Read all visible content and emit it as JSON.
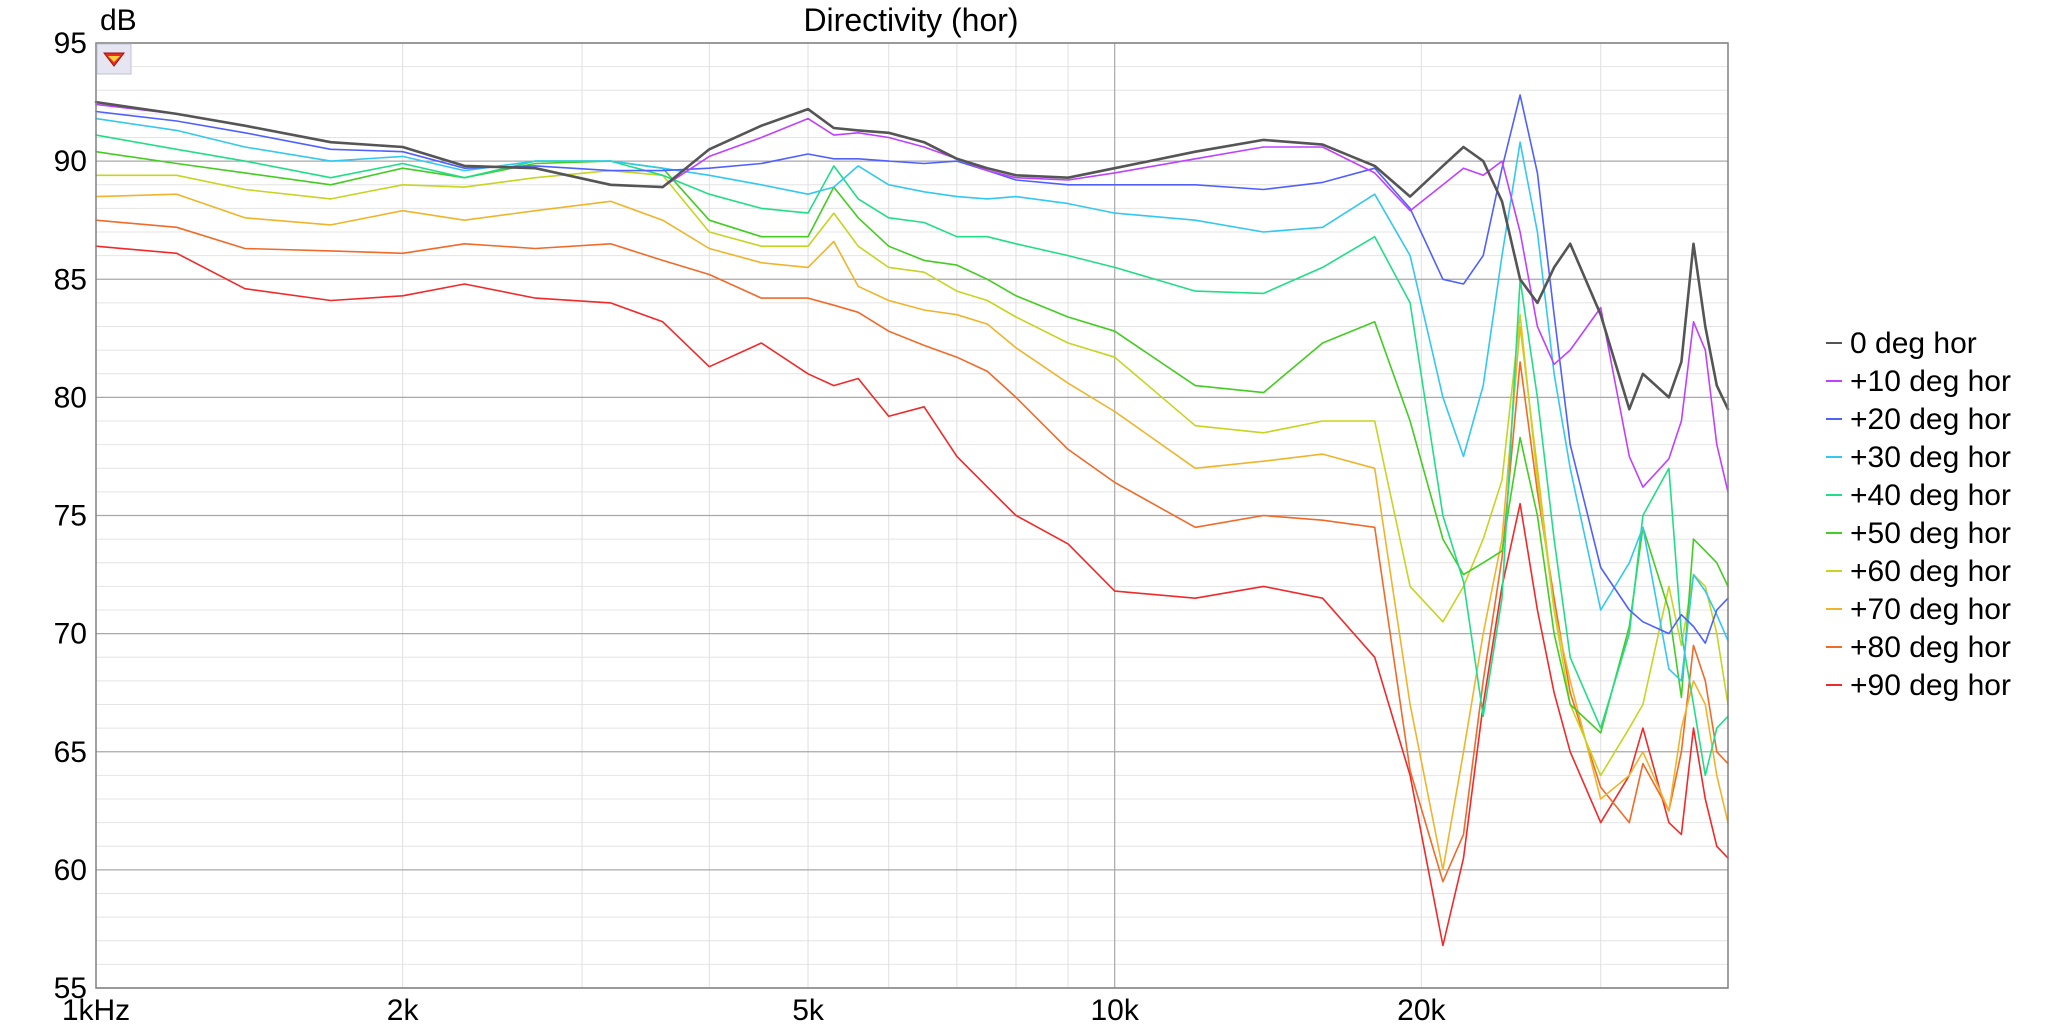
{
  "chart_data": {
    "type": "line",
    "title": "Directivity (hor)",
    "ylabel": "dB",
    "xscale": "log",
    "xlim": [
      1000,
      40000
    ],
    "ylim": [
      55,
      95
    ],
    "grid": true,
    "legend_position": "right",
    "y_ticks": [
      {
        "value": 95,
        "label": "95"
      },
      {
        "value": 90,
        "label": "90"
      },
      {
        "value": 85,
        "label": "85"
      },
      {
        "value": 80,
        "label": "80"
      },
      {
        "value": 75,
        "label": "75"
      },
      {
        "value": 70,
        "label": "70"
      },
      {
        "value": 65,
        "label": "65"
      },
      {
        "value": 60,
        "label": "60"
      },
      {
        "value": 55,
        "label": "55"
      }
    ],
    "x_ticks": [
      {
        "value": 1000,
        "label": "1kHz"
      },
      {
        "value": 2000,
        "label": "2k"
      },
      {
        "value": 5000,
        "label": "5k"
      },
      {
        "value": 10000,
        "label": "10k"
      },
      {
        "value": 20000,
        "label": "20k"
      }
    ],
    "series": [
      {
        "name": "0 deg hor",
        "color": "#555555",
        "x": [
          1000,
          1200,
          1400,
          1700,
          2000,
          2300,
          2700,
          3200,
          3600,
          4000,
          4500,
          5000,
          5300,
          5600,
          6000,
          6500,
          7000,
          7500,
          8000,
          9000,
          10000,
          12000,
          14000,
          16000,
          18000,
          19500,
          21000,
          22000,
          23000,
          24000,
          25000,
          26000,
          27000,
          28000,
          30000,
          32000,
          33000,
          35000,
          36000,
          37000,
          38000,
          39000,
          40000
        ],
        "y": [
          92.5,
          92,
          91.5,
          90.8,
          90.6,
          89.8,
          89.7,
          89,
          88.9,
          90.5,
          91.5,
          92.2,
          91.4,
          91.3,
          91.2,
          90.8,
          90.1,
          89.7,
          89.4,
          89.3,
          89.7,
          90.4,
          90.9,
          90.7,
          89.8,
          88.5,
          89.8,
          90.6,
          90,
          88.3,
          85,
          84,
          85.5,
          86.5,
          83.5,
          79.5,
          81,
          80,
          81.5,
          86.5,
          83,
          80.5,
          79.5
        ]
      },
      {
        "name": "+10 deg hor",
        "color": "#c040ff",
        "x": [
          1000,
          1200,
          1400,
          1700,
          2000,
          2300,
          2700,
          3200,
          3600,
          4000,
          4500,
          5000,
          5300,
          5600,
          6000,
          6500,
          7000,
          7500,
          8000,
          9000,
          10000,
          12000,
          14000,
          16000,
          18000,
          19500,
          21000,
          22000,
          23000,
          24000,
          25000,
          26000,
          27000,
          28000,
          30000,
          32000,
          33000,
          35000,
          36000,
          37000,
          38000,
          39000,
          40000
        ],
        "y": [
          92.4,
          92,
          91.5,
          90.8,
          90.6,
          89.8,
          89.7,
          89,
          88.9,
          90.2,
          91,
          91.8,
          91.1,
          91.2,
          91,
          90.6,
          90.1,
          89.6,
          89.3,
          89.2,
          89.5,
          90.1,
          90.6,
          90.6,
          89.5,
          87.9,
          89,
          89.7,
          89.4,
          90,
          87,
          83,
          81.4,
          82,
          83.8,
          77.5,
          76.2,
          77.4,
          79,
          83.2,
          82,
          78,
          76
        ]
      },
      {
        "name": "+20 deg hor",
        "color": "#5060ff",
        "x": [
          1000,
          1200,
          1400,
          1700,
          2000,
          2300,
          2700,
          3200,
          3600,
          4000,
          4500,
          5000,
          5300,
          5600,
          6000,
          6500,
          7000,
          7500,
          8000,
          9000,
          10000,
          12000,
          14000,
          16000,
          18000,
          19500,
          21000,
          22000,
          23000,
          24000,
          25000,
          26000,
          27000,
          28000,
          30000,
          32000,
          33000,
          35000,
          36000,
          37000,
          38000,
          39000,
          40000
        ],
        "y": [
          92.1,
          91.7,
          91.2,
          90.5,
          90.4,
          89.7,
          89.8,
          89.6,
          89.6,
          89.7,
          89.9,
          90.3,
          90.1,
          90.1,
          90,
          89.9,
          90,
          89.6,
          89.2,
          89,
          89,
          89,
          88.8,
          89.1,
          89.7,
          88,
          85,
          84.8,
          86,
          89.7,
          92.8,
          89.5,
          83.5,
          78,
          72.8,
          71,
          70.5,
          70,
          70.8,
          70.3,
          69.6,
          71,
          71.5
        ]
      },
      {
        "name": "+30 deg hor",
        "color": "#33c8f0",
        "x": [
          1000,
          1200,
          1400,
          1700,
          2000,
          2300,
          2700,
          3200,
          3600,
          4000,
          4500,
          5000,
          5300,
          5600,
          6000,
          6500,
          7000,
          7500,
          8000,
          9000,
          10000,
          12000,
          14000,
          16000,
          18000,
          19500,
          21000,
          22000,
          23000,
          24000,
          25000,
          26000,
          27000,
          28000,
          30000,
          32000,
          33000,
          35000,
          36000,
          37000,
          38000,
          39000,
          40000
        ],
        "y": [
          91.8,
          91.3,
          90.6,
          90,
          90.2,
          89.6,
          90,
          90,
          89.7,
          89.4,
          89,
          88.6,
          88.9,
          89.8,
          89,
          88.7,
          88.5,
          88.4,
          88.5,
          88.2,
          87.8,
          87.5,
          87,
          87.2,
          88.6,
          86,
          80,
          77.5,
          80.5,
          86,
          90.8,
          87,
          81,
          77,
          71,
          73,
          74.5,
          68.5,
          68,
          72.5,
          71.8,
          70.8,
          69.7
        ]
      },
      {
        "name": "+40 deg hor",
        "color": "#22dd88",
        "x": [
          1000,
          1200,
          1400,
          1700,
          2000,
          2300,
          2700,
          3200,
          3600,
          4000,
          4500,
          5000,
          5300,
          5600,
          6000,
          6500,
          7000,
          7500,
          8000,
          9000,
          10000,
          12000,
          14000,
          16000,
          18000,
          19500,
          21000,
          22000,
          23000,
          24000,
          25000,
          26000,
          27000,
          28000,
          30000,
          32000,
          33000,
          35000,
          36000,
          37000,
          38000,
          39000,
          40000
        ],
        "y": [
          91.1,
          90.5,
          90,
          89.3,
          89.9,
          89.3,
          90,
          90,
          89.4,
          88.6,
          88,
          87.8,
          89.8,
          88.4,
          87.6,
          87.4,
          86.8,
          86.8,
          86.5,
          86,
          85.5,
          84.5,
          84.4,
          85.5,
          86.8,
          84,
          75,
          72.2,
          66.5,
          71.5,
          85,
          80,
          74,
          69,
          66,
          70,
          75,
          77,
          70,
          67,
          64,
          66,
          66.5
        ]
      },
      {
        "name": "+50 deg hor",
        "color": "#44cc22",
        "x": [
          1000,
          1200,
          1400,
          1700,
          2000,
          2300,
          2700,
          3200,
          3600,
          4000,
          4500,
          5000,
          5300,
          5600,
          6000,
          6500,
          7000,
          7500,
          8000,
          9000,
          10000,
          12000,
          14000,
          16000,
          18000,
          19500,
          21000,
          22000,
          23000,
          24000,
          25000,
          26000,
          27000,
          28000,
          30000,
          32000,
          33000,
          35000,
          36000,
          37000,
          38000,
          39000,
          40000
        ],
        "y": [
          90.4,
          89.9,
          89.5,
          89,
          89.7,
          89.3,
          89.9,
          90,
          89.7,
          87.5,
          86.8,
          86.8,
          88.9,
          87.6,
          86.4,
          85.8,
          85.6,
          85,
          84.3,
          83.4,
          82.8,
          80.5,
          80.2,
          82.3,
          83.2,
          79,
          74,
          72.5,
          73,
          73.5,
          78.3,
          75,
          70,
          67,
          65.8,
          70.3,
          74.5,
          71,
          67.3,
          74,
          73.5,
          73,
          72
        ]
      },
      {
        "name": "+60 deg hor",
        "color": "#c6d422",
        "x": [
          1000,
          1200,
          1400,
          1700,
          2000,
          2300,
          2700,
          3200,
          3600,
          4000,
          4500,
          5000,
          5300,
          5600,
          6000,
          6500,
          7000,
          7500,
          8000,
          9000,
          10000,
          12000,
          14000,
          16000,
          18000,
          19500,
          21000,
          22000,
          23000,
          24000,
          25000,
          26000,
          27000,
          28000,
          30000,
          32000,
          33000,
          35000,
          36000,
          37000,
          38000,
          39000,
          40000
        ],
        "y": [
          89.4,
          89.4,
          88.8,
          88.4,
          89,
          88.9,
          89.3,
          89.6,
          89.4,
          87,
          86.4,
          86.4,
          87.8,
          86.4,
          85.5,
          85.3,
          84.5,
          84.1,
          83.4,
          82.3,
          81.7,
          78.8,
          78.5,
          79,
          79,
          72,
          70.5,
          72,
          74,
          76.5,
          83.5,
          76.5,
          71,
          67,
          64,
          66,
          67,
          72,
          69.5,
          72.5,
          72,
          70,
          67
        ]
      },
      {
        "name": "+70 deg hor",
        "color": "#f0b42a",
        "x": [
          1000,
          1200,
          1400,
          1700,
          2000,
          2300,
          2700,
          3200,
          3600,
          4000,
          4500,
          5000,
          5300,
          5600,
          6000,
          6500,
          7000,
          7500,
          8000,
          9000,
          10000,
          12000,
          14000,
          16000,
          18000,
          19500,
          21000,
          22000,
          23000,
          24000,
          25000,
          26000,
          27000,
          28000,
          30000,
          32000,
          33000,
          35000,
          36000,
          37000,
          38000,
          39000,
          40000
        ],
        "y": [
          88.5,
          88.6,
          87.6,
          87.3,
          87.9,
          87.5,
          87.9,
          88.3,
          87.5,
          86.3,
          85.7,
          85.5,
          86.6,
          84.7,
          84.1,
          83.7,
          83.5,
          83.1,
          82.1,
          80.6,
          79.4,
          77,
          77.3,
          77.6,
          77,
          67,
          60,
          65,
          70,
          74,
          83,
          77,
          71,
          68,
          63,
          64,
          65,
          62.5,
          66,
          68,
          67,
          64,
          62
        ]
      },
      {
        "name": "+80 deg hor",
        "color": "#f06a2a",
        "x": [
          1000,
          1200,
          1400,
          1700,
          2000,
          2300,
          2700,
          3200,
          3600,
          4000,
          4500,
          5000,
          5300,
          5600,
          6000,
          6500,
          7000,
          7500,
          8000,
          9000,
          10000,
          12000,
          14000,
          16000,
          18000,
          19500,
          21000,
          22000,
          23000,
          24000,
          25000,
          26000,
          27000,
          28000,
          30000,
          32000,
          33000,
          35000,
          36000,
          37000,
          38000,
          39000,
          40000
        ],
        "y": [
          87.5,
          87.2,
          86.3,
          86.2,
          86.1,
          86.5,
          86.3,
          86.5,
          85.8,
          85.2,
          84.2,
          84.2,
          83.9,
          83.6,
          82.8,
          82.2,
          81.7,
          81.1,
          80,
          77.8,
          76.4,
          74.5,
          75,
          74.8,
          74.5,
          64.2,
          59.5,
          61.5,
          68,
          73.2,
          81.5,
          76,
          71.5,
          67.5,
          63.5,
          62,
          64.5,
          62.5,
          65,
          69.5,
          68,
          65,
          64.5
        ]
      },
      {
        "name": "+90 deg hor",
        "color": "#f02a2a",
        "x": [
          1000,
          1200,
          1400,
          1700,
          2000,
          2300,
          2700,
          3200,
          3600,
          4000,
          4500,
          5000,
          5300,
          5600,
          6000,
          6500,
          7000,
          7500,
          8000,
          9000,
          10000,
          12000,
          14000,
          16000,
          18000,
          19500,
          21000,
          22000,
          23000,
          24000,
          25000,
          26000,
          27000,
          28000,
          30000,
          32000,
          33000,
          35000,
          36000,
          37000,
          38000,
          39000,
          40000
        ],
        "y": [
          86.4,
          86.1,
          84.6,
          84.1,
          84.3,
          84.8,
          84.2,
          84,
          83.2,
          81.3,
          82.3,
          81,
          80.5,
          80.8,
          79.2,
          79.6,
          77.5,
          76.2,
          75,
          73.8,
          71.8,
          71.5,
          72,
          71.5,
          69,
          64,
          56.8,
          60.5,
          67,
          72,
          75.5,
          71,
          67.5,
          65,
          62,
          64,
          66,
          62,
          61.5,
          66,
          63,
          61,
          60.5
        ]
      }
    ]
  }
}
